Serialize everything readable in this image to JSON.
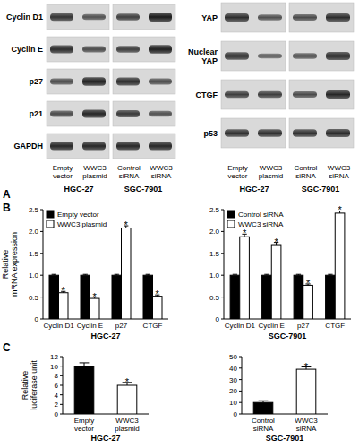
{
  "panel_labels": [
    "A",
    "B",
    "C"
  ],
  "blots": [
    {
      "rows": [
        "Cyclin D1",
        "Cyclin E",
        "p27",
        "p21",
        "GAPDH"
      ],
      "lanes": [
        "Empty vector",
        "WWC3 plasmid",
        "Control siRNA",
        "WWC3 siRNA"
      ],
      "groups": [
        "HGC-27",
        "SGC-7901"
      ]
    },
    {
      "rows": [
        "YAP",
        "Nuclear YAP",
        "CTGF",
        "p53"
      ],
      "lanes": [
        "Empty vector",
        "WWC3 plasmid",
        "Control siRNA",
        "WWC3 siRNA"
      ],
      "groups": [
        "HGC-27",
        "SGC-7901"
      ]
    }
  ],
  "chart_data": [
    {
      "type": "bar",
      "ylabel": [
        "Relative",
        "mRNA expression"
      ],
      "xlabel": "HGC-27",
      "categories": [
        "Cyclin D1",
        "Cyclin E",
        "p27",
        "CTGF"
      ],
      "series": [
        {
          "name": "Empty vector",
          "color": "#000000",
          "values": [
            1.0,
            1.0,
            1.0,
            1.0
          ],
          "errors": [
            0.02,
            0.02,
            0.02,
            0.02
          ]
        },
        {
          "name": "WWC3 plasmid",
          "color": "#ffffff",
          "values": [
            0.6,
            0.47,
            2.08,
            0.52
          ],
          "errors": [
            0.03,
            0.03,
            0.05,
            0.03
          ]
        }
      ],
      "annotations": [
        {
          "text": "*",
          "series": 1,
          "index": 0
        },
        {
          "text": "*",
          "series": 1,
          "index": 1
        },
        {
          "text": "*",
          "series": 1,
          "index": 2
        },
        {
          "text": "*",
          "series": 1,
          "index": 3
        }
      ],
      "ylim": [
        0,
        2.5
      ],
      "yticks": [
        0,
        0.5,
        {
          "value": 1,
          "label": "1.0"
        },
        1.5,
        {
          "value": 2,
          "label": "2.0"
        },
        2.5
      ],
      "legend": "upper left"
    },
    {
      "type": "bar",
      "xlabel": "SGC-7901",
      "categories": [
        "Cyclin D1",
        "Cyclin E",
        "p27",
        "CTGF"
      ],
      "series": [
        {
          "name": "Control siRNA",
          "color": "#000000",
          "values": [
            1.0,
            1.0,
            1.0,
            1.0
          ],
          "errors": [
            0.02,
            0.02,
            0.02,
            0.02
          ]
        },
        {
          "name": "WWC3 siRNA",
          "color": "#ffffff",
          "values": [
            1.88,
            1.7,
            0.77,
            2.42
          ],
          "errors": [
            0.06,
            0.05,
            0.03,
            0.05
          ]
        }
      ],
      "annotations": [
        {
          "text": "*",
          "series": 1,
          "index": 0
        },
        {
          "text": "*",
          "series": 1,
          "index": 1
        },
        {
          "text": "*",
          "series": 1,
          "index": 2
        },
        {
          "text": "*",
          "series": 1,
          "index": 3
        }
      ],
      "ylim": [
        0,
        2.5
      ],
      "yticks": [
        0,
        0.5,
        {
          "value": 1,
          "label": "1.0"
        },
        1.5,
        {
          "value": 2,
          "label": "2.0"
        },
        2.5
      ],
      "legend": "upper left"
    },
    {
      "type": "bar",
      "ylabel": [
        "Relative",
        "luciferase unit"
      ],
      "xlabel": "HGC-27",
      "categories": [
        "Empty vector",
        "WWC3 plasmid"
      ],
      "colors": [
        "#000000",
        "#ffffff"
      ],
      "values": [
        10,
        6
      ],
      "errors": [
        0.7,
        0.6
      ],
      "annotations": [
        {
          "text": "*",
          "index": 1
        }
      ],
      "ylim": [
        0,
        12
      ],
      "yticks": [
        0,
        2,
        4,
        6,
        8,
        10,
        12
      ]
    },
    {
      "type": "bar",
      "xlabel": "SGC-7901",
      "categories": [
        "Control siRNA",
        "WWC3 siRNA"
      ],
      "colors": [
        "#000000",
        "#ffffff"
      ],
      "values": [
        10,
        39
      ],
      "errors": [
        1.5,
        2
      ],
      "annotations": [
        {
          "text": "*",
          "index": 1
        }
      ],
      "ylim": [
        0,
        50
      ],
      "yticks": [
        0,
        10,
        20,
        30,
        40,
        50
      ]
    }
  ]
}
